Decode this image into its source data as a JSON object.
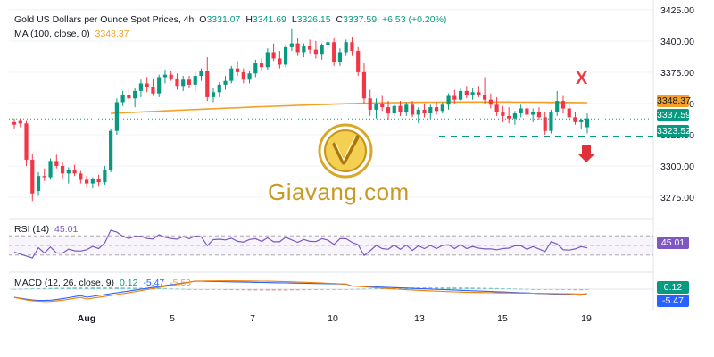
{
  "header": {
    "title": "Gold US Dollars per Ounce Spot Prices, 4h",
    "o_label": "O",
    "o_value": "3331.07",
    "h_label": "H",
    "h_value": "3341.69",
    "l_label": "L",
    "l_value": "3326.15",
    "c_label": "C",
    "c_value": "3337.59",
    "change": "+6.53 (+0.20%)"
  },
  "ma": {
    "label": "MA (100, close, 0)",
    "value": "3348.37",
    "color": "#f2a126"
  },
  "rsi": {
    "label": "RSI (14)",
    "value": "45.01",
    "tag": "45.01",
    "color": "#7e57c2"
  },
  "macd": {
    "label": "MACD (12, 26, close, 9)",
    "v1": "0.12",
    "v2": "-5.47",
    "v3": "-5.59",
    "tag1": "0.12",
    "tag2": "-5.47"
  },
  "price_tags": {
    "ma": "3348.37",
    "close": "3337.59",
    "support": "3323.52"
  },
  "annotations": {
    "x_mark": "X"
  },
  "watermark": {
    "text": "Giavang.com"
  },
  "colors": {
    "up": "#089981",
    "down": "#f23645",
    "ma": "#f2a126",
    "rsi": "#7e57c2",
    "macd": "#2962ff",
    "signal": "#f57c00",
    "support": "#089981"
  },
  "chart_data": {
    "type": "candlestick",
    "title": "Gold US Dollars per Ounce Spot Prices, 4h",
    "price_axis": {
      "ticks": [
        3275,
        3300,
        3325,
        3350,
        3375,
        3400,
        3425
      ],
      "tick_labels": [
        "3275.00",
        "3300.00",
        "3325.00",
        "3350.00",
        "3375.00",
        "3400.00",
        "3425.00"
      ],
      "range": [
        3260,
        3427
      ]
    },
    "x_axis": {
      "tick_labels": [
        "Aug",
        "5",
        "7",
        "10",
        "13",
        "15",
        "19"
      ]
    },
    "candles": [
      [
        3335,
        3338,
        3330,
        3333
      ],
      [
        3336,
        3338,
        3331,
        3334
      ],
      [
        3334,
        3336,
        3300,
        3305
      ],
      [
        3305,
        3310,
        3272,
        3278
      ],
      [
        3280,
        3295,
        3276,
        3292
      ],
      [
        3292,
        3298,
        3288,
        3291
      ],
      [
        3291,
        3306,
        3289,
        3304
      ],
      [
        3304,
        3309,
        3298,
        3300
      ],
      [
        3300,
        3303,
        3290,
        3294
      ],
      [
        3294,
        3299,
        3286,
        3297
      ],
      [
        3297,
        3301,
        3292,
        3294
      ],
      [
        3294,
        3296,
        3286,
        3289
      ],
      [
        3289,
        3292,
        3283,
        3286
      ],
      [
        3286,
        3291,
        3282,
        3290
      ],
      [
        3290,
        3293,
        3284,
        3287
      ],
      [
        3287,
        3300,
        3285,
        3297
      ],
      [
        3297,
        3330,
        3295,
        3328
      ],
      [
        3328,
        3354,
        3325,
        3351
      ],
      [
        3351,
        3360,
        3348,
        3357
      ],
      [
        3357,
        3362,
        3351,
        3354
      ],
      [
        3354,
        3362,
        3347,
        3360
      ],
      [
        3360,
        3369,
        3355,
        3366
      ],
      [
        3366,
        3371,
        3359,
        3363
      ],
      [
        3363,
        3370,
        3356,
        3358
      ],
      [
        3358,
        3373,
        3355,
        3371
      ],
      [
        3371,
        3377,
        3366,
        3373
      ],
      [
        3373,
        3376,
        3368,
        3370
      ],
      [
        3370,
        3374,
        3361,
        3364
      ],
      [
        3364,
        3372,
        3360,
        3369
      ],
      [
        3369,
        3372,
        3362,
        3365
      ],
      [
        3365,
        3375,
        3360,
        3372
      ],
      [
        3372,
        3378,
        3368,
        3376
      ],
      [
        3376,
        3387,
        3352,
        3355
      ],
      [
        3355,
        3362,
        3351,
        3359
      ],
      [
        3359,
        3367,
        3355,
        3365
      ],
      [
        3365,
        3372,
        3361,
        3368
      ],
      [
        3368,
        3380,
        3366,
        3378
      ],
      [
        3378,
        3384,
        3372,
        3375
      ],
      [
        3375,
        3378,
        3366,
        3369
      ],
      [
        3369,
        3376,
        3366,
        3374
      ],
      [
        3374,
        3385,
        3371,
        3382
      ],
      [
        3382,
        3386,
        3376,
        3379
      ],
      [
        3379,
        3394,
        3377,
        3391
      ],
      [
        3391,
        3398,
        3384,
        3386
      ],
      [
        3386,
        3392,
        3378,
        3381
      ],
      [
        3381,
        3397,
        3379,
        3395
      ],
      [
        3395,
        3410,
        3392,
        3398
      ],
      [
        3398,
        3402,
        3388,
        3391
      ],
      [
        3391,
        3398,
        3387,
        3396
      ],
      [
        3396,
        3401,
        3390,
        3393
      ],
      [
        3393,
        3400,
        3386,
        3389
      ],
      [
        3389,
        3398,
        3385,
        3397
      ],
      [
        3397,
        3402,
        3393,
        3399
      ],
      [
        3399,
        3402,
        3380,
        3383
      ],
      [
        3383,
        3394,
        3380,
        3391
      ],
      [
        3391,
        3401,
        3388,
        3399
      ],
      [
        3399,
        3403,
        3388,
        3392
      ],
      [
        3392,
        3395,
        3372,
        3375
      ],
      [
        3375,
        3382,
        3350,
        3354
      ],
      [
        3354,
        3361,
        3340,
        3345
      ],
      [
        3345,
        3354,
        3338,
        3350
      ],
      [
        3350,
        3356,
        3344,
        3347
      ],
      [
        3347,
        3352,
        3337,
        3342
      ],
      [
        3342,
        3350,
        3340,
        3348
      ],
      [
        3348,
        3352,
        3340,
        3343
      ],
      [
        3343,
        3351,
        3340,
        3349
      ],
      [
        3349,
        3352,
        3339,
        3341
      ],
      [
        3341,
        3347,
        3334,
        3345
      ],
      [
        3345,
        3350,
        3339,
        3342
      ],
      [
        3342,
        3349,
        3338,
        3347
      ],
      [
        3347,
        3351,
        3341,
        3344
      ],
      [
        3344,
        3351,
        3342,
        3349
      ],
      [
        3349,
        3358,
        3345,
        3356
      ],
      [
        3356,
        3361,
        3350,
        3353
      ],
      [
        3353,
        3362,
        3352,
        3360
      ],
      [
        3360,
        3364,
        3354,
        3357
      ],
      [
        3357,
        3362,
        3353,
        3359
      ],
      [
        3359,
        3364,
        3355,
        3357
      ],
      [
        3357,
        3371,
        3350,
        3353
      ],
      [
        3353,
        3358,
        3346,
        3349
      ],
      [
        3349,
        3355,
        3340,
        3343
      ],
      [
        3343,
        3348,
        3335,
        3340
      ],
      [
        3340,
        3347,
        3334,
        3338
      ],
      [
        3338,
        3344,
        3333,
        3342
      ],
      [
        3342,
        3349,
        3339,
        3346
      ],
      [
        3346,
        3349,
        3338,
        3341
      ],
      [
        3341,
        3346,
        3335,
        3343
      ],
      [
        3343,
        3347,
        3337,
        3339
      ],
      [
        3339,
        3343,
        3325,
        3328
      ],
      [
        3328,
        3345,
        3326,
        3343
      ],
      [
        3343,
        3360,
        3340,
        3352
      ],
      [
        3352,
        3356,
        3342,
        3346
      ],
      [
        3346,
        3350,
        3336,
        3339
      ],
      [
        3339,
        3343,
        3333,
        3335
      ],
      [
        3335,
        3338,
        3330,
        3337
      ],
      [
        3331,
        3342,
        3326,
        3338
      ]
    ],
    "ma100_value": 3348.37,
    "last_close": 3337.59,
    "support_level": 3323.52,
    "rsi": {
      "range": [
        0,
        100
      ],
      "bands": [
        30,
        70
      ],
      "last": 45.01
    },
    "macd": {
      "macd_last": -5.47,
      "signal_last": -5.59,
      "hist_last": 0.12
    },
    "grid": true
  }
}
